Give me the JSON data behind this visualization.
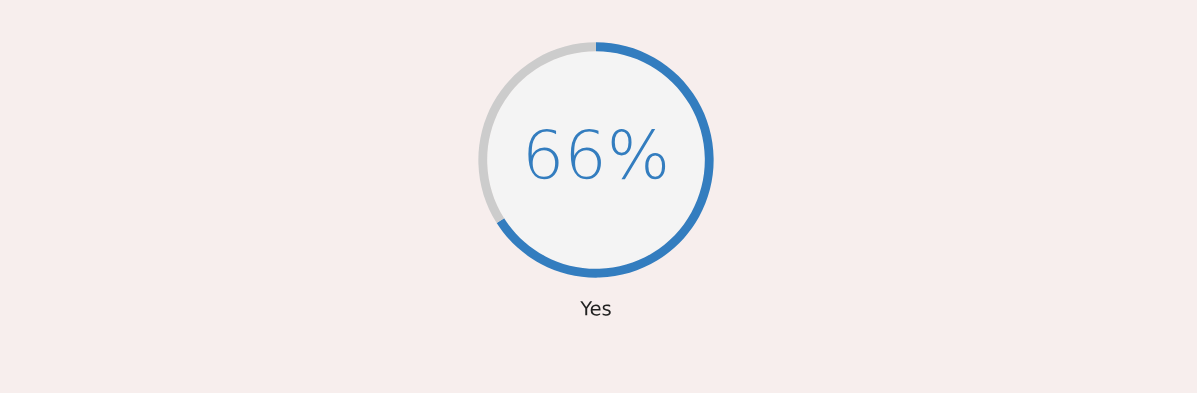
{
  "chart_data": {
    "type": "donut",
    "categories": [
      "Yes",
      null
    ],
    "values": [
      66,
      34
    ],
    "colors": [
      "#337dbf",
      "#cccccc"
    ],
    "value_labels": [
      "66%",
      null
    ]
  }
}
